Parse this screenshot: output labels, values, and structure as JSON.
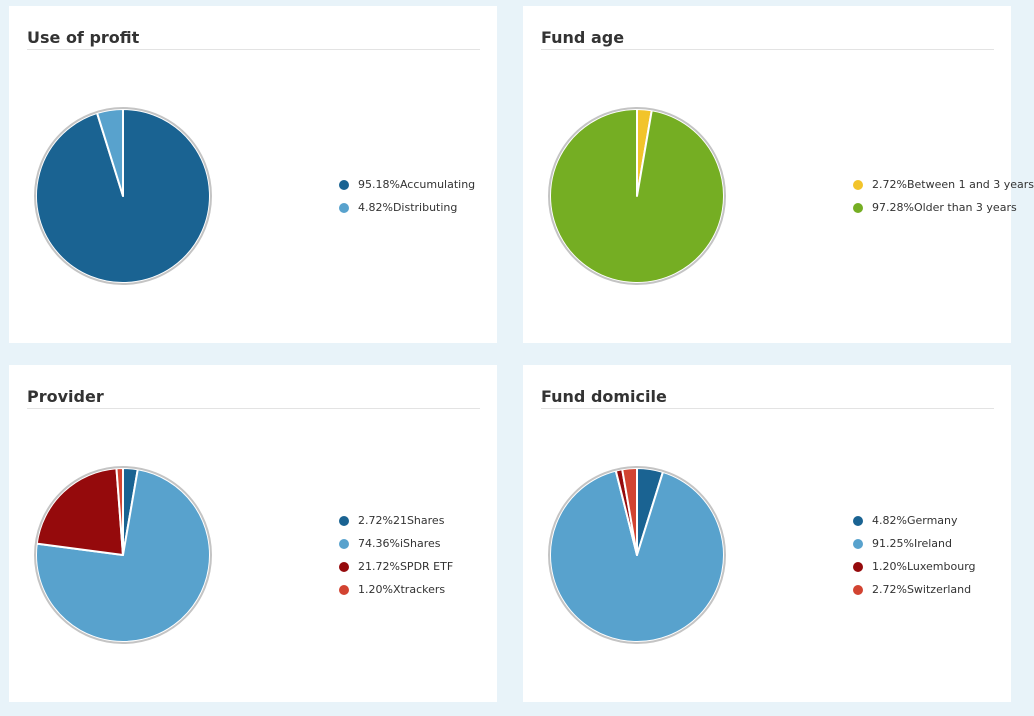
{
  "chart_data": [
    {
      "type": "pie",
      "title": "Use of profit",
      "slices": [
        {
          "label": "Accumulating",
          "pct_label": "95.18%",
          "value": 95.18,
          "color": "#1a6392"
        },
        {
          "label": "Distributing",
          "pct_label": "4.82%",
          "value": 4.82,
          "color": "#58a2cd"
        }
      ]
    },
    {
      "type": "pie",
      "title": "Fund age",
      "slices": [
        {
          "label": "Between 1 and 3 years",
          "pct_label": "2.72%",
          "value": 2.72,
          "color": "#f2c42b"
        },
        {
          "label": "Older than 3 years",
          "pct_label": "97.28%",
          "value": 97.28,
          "color": "#75ae23"
        }
      ]
    },
    {
      "type": "pie",
      "title": "Provider",
      "slices": [
        {
          "label": "21Shares",
          "pct_label": "2.72%",
          "value": 2.72,
          "color": "#1a6392"
        },
        {
          "label": "iShares",
          "pct_label": "74.36%",
          "value": 74.36,
          "color": "#58a2cd"
        },
        {
          "label": "SPDR ETF",
          "pct_label": "21.72%",
          "value": 21.72,
          "color": "#950a0c"
        },
        {
          "label": "Xtrackers",
          "pct_label": "1.20%",
          "value": 1.2,
          "color": "#d24331"
        }
      ]
    },
    {
      "type": "pie",
      "title": "Fund domicile",
      "slices": [
        {
          "label": "Germany",
          "pct_label": "4.82%",
          "value": 4.82,
          "color": "#1a6392"
        },
        {
          "label": "Ireland",
          "pct_label": "91.25%",
          "value": 91.25,
          "color": "#58a2cd"
        },
        {
          "label": "Luxembourg",
          "pct_label": "1.20%",
          "value": 1.2,
          "color": "#950a0c"
        },
        {
          "label": "Switzerland",
          "pct_label": "2.72%",
          "value": 2.72,
          "color": "#d24331"
        }
      ]
    }
  ]
}
